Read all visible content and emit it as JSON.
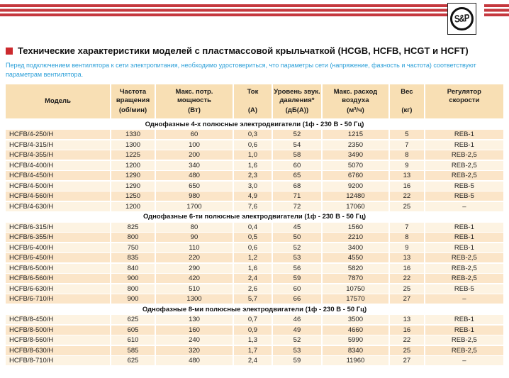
{
  "logo": {
    "text": "S&P"
  },
  "colors": {
    "stripe_red": "#c5383e",
    "bullet_red": "#cc2a2e",
    "intro_blue": "#2b9fd8",
    "header_bg": "#f8dfb4",
    "row_dark": "#fbe5c8",
    "row_light": "#fdf3e2"
  },
  "title": "Технические характеристики моделей с пластмассовой крыльчаткой (HCGB, HCFB, HCGT и HCFT)",
  "intro": "Перед подключением вентилятора к сети электропитания, необходимо удостовериться, что параметры сети (напряжение, фазность и частота) соответствуют параметрам вентилятора.",
  "table": {
    "columns": [
      {
        "key": "model",
        "lines": [
          "Модель"
        ],
        "unit": "",
        "center": true
      },
      {
        "key": "rpm",
        "lines": [
          "Частота",
          "вращения"
        ],
        "unit": "(об/мин)",
        "center": false
      },
      {
        "key": "power",
        "lines": [
          "Макс. потр.",
          "мощность"
        ],
        "unit": "(Вт)",
        "center": false
      },
      {
        "key": "current",
        "lines": [
          "Ток"
        ],
        "unit": "(А)",
        "center": false
      },
      {
        "key": "noise",
        "lines": [
          "Уровень звук.",
          "давления*"
        ],
        "unit": "(дБ(А))",
        "center": false
      },
      {
        "key": "airflow",
        "lines": [
          "Макс. расход",
          "воздуха"
        ],
        "unit": "(м³/ч)",
        "center": false
      },
      {
        "key": "weight",
        "lines": [
          "Вес"
        ],
        "unit": "(кг)",
        "center": false
      },
      {
        "key": "regulator",
        "lines": [
          "Регулятор",
          "скорости"
        ],
        "unit": "",
        "center": false
      }
    ],
    "sections": [
      {
        "title": "Однофазные 4-х полюсные электродвигатели (1ф - 230 В - 50 Гц)",
        "first_shade": "dark",
        "rows": [
          [
            "HCFB/4-250/H",
            "1330",
            "60",
            "0,3",
            "52",
            "1215",
            "5",
            "REB-1"
          ],
          [
            "HCFB/4-315/H",
            "1300",
            "100",
            "0,6",
            "54",
            "2350",
            "7",
            "REB-1"
          ],
          [
            "HCFB/4-355/H",
            "1225",
            "200",
            "1,0",
            "58",
            "3490",
            "8",
            "REB-2,5"
          ],
          [
            "HCFB/4-400/H",
            "1200",
            "340",
            "1,6",
            "60",
            "5070",
            "9",
            "REB-2,5"
          ],
          [
            "HCFB/4-450/H",
            "1290",
            "480",
            "2,3",
            "65",
            "6760",
            "13",
            "REB-2,5"
          ],
          [
            "HCFB/4-500/H",
            "1290",
            "650",
            "3,0",
            "68",
            "9200",
            "16",
            "REB-5"
          ],
          [
            "HCFB/4-560/H",
            "1250",
            "980",
            "4,9",
            "71",
            "12480",
            "22",
            "REB-5"
          ],
          [
            "HCFB/4-630/H",
            "1200",
            "1700",
            "7,6",
            "72",
            "17060",
            "25",
            "–"
          ]
        ]
      },
      {
        "title": "Однофазные 6-ти полюсные электродвигатели (1ф - 230 В - 50 Гц)",
        "first_shade": "light",
        "rows": [
          [
            "HCFB/6-315/H",
            "825",
            "80",
            "0,4",
            "45",
            "1560",
            "7",
            "REB-1"
          ],
          [
            "HCFB/6-355/H",
            "800",
            "90",
            "0,5",
            "50",
            "2210",
            "8",
            "REB-1"
          ],
          [
            "HCFB/6-400/H",
            "750",
            "110",
            "0,6",
            "52",
            "3400",
            "9",
            "REB-1"
          ],
          [
            "HCFB/6-450/H",
            "835",
            "220",
            "1,2",
            "53",
            "4550",
            "13",
            "REB-2,5"
          ],
          [
            "HCFB/6-500/H",
            "840",
            "290",
            "1,6",
            "56",
            "5820",
            "16",
            "REB-2,5"
          ],
          [
            "HCFB/6-560/H",
            "900",
            "420",
            "2,4",
            "59",
            "7870",
            "22",
            "REB-2,5"
          ],
          [
            "HCFB/6-630/H",
            "800",
            "510",
            "2,6",
            "60",
            "10750",
            "25",
            "REB-5"
          ],
          [
            "HCFB/6-710/H",
            "900",
            "1300",
            "5,7",
            "66",
            "17570",
            "27",
            "–"
          ]
        ]
      },
      {
        "title": "Однофазные 8-ми полюсные электродвигатели (1ф - 230 В - 50 Гц)",
        "first_shade": "light",
        "rows": [
          [
            "HCFB/8-450/H",
            "625",
            "130",
            "0,7",
            "46",
            "3500",
            "13",
            "REB-1"
          ],
          [
            "HCFB/8-500/H",
            "605",
            "160",
            "0,9",
            "49",
            "4660",
            "16",
            "REB-1"
          ],
          [
            "HCFB/8-560/H",
            "610",
            "240",
            "1,3",
            "52",
            "5990",
            "22",
            "REB-2,5"
          ],
          [
            "HCFB/8-630/H",
            "585",
            "320",
            "1,7",
            "53",
            "8340",
            "25",
            "REB-2,5"
          ],
          [
            "HCFB/8-710/H",
            "625",
            "480",
            "2,4",
            "59",
            "11960",
            "27",
            "–"
          ]
        ]
      }
    ]
  }
}
